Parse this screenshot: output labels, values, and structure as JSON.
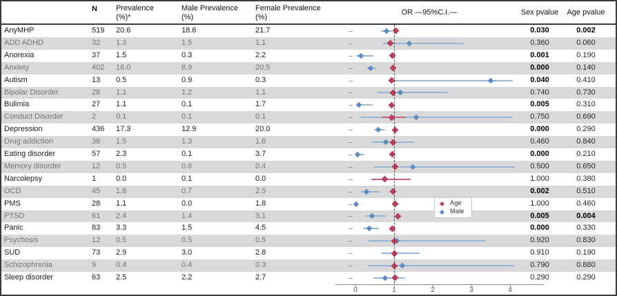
{
  "header": {
    "n": "N",
    "prevalence": "Prevalence\n(%)*",
    "male_prevalence": "Male Prevalence\n(%)",
    "female_prevalence": "Female Prevalence\n(%)",
    "or_ci": "OR —95%C.I.—",
    "sex_pvalue": "Sex pvalue",
    "age_pvalue": "Age pvalue"
  },
  "legend": {
    "items": [
      {
        "label": "Age",
        "color": "#b8415a"
      },
      {
        "label": "Male",
        "color": "#5d8cc0"
      }
    ]
  },
  "colors": {
    "age_marker": "#b8415a",
    "age_line": "#c4607a",
    "male_marker": "#5d8cc0",
    "male_line": "#96b6d8",
    "shaded_row": "#d9d9d9",
    "ref_line": "#4a4a4a"
  },
  "table": {
    "rows": [
      {
        "name": "AnyMHP",
        "n": "519",
        "prev": "20.6",
        "male_prev": "18.6",
        "female_prev": "21.7",
        "sex_p": "0.030",
        "sex_bold": true,
        "age_p": "0.002",
        "age_bold": true,
        "shaded": false
      },
      {
        "name": "ADD ADHD",
        "n": "32",
        "prev": "1.3",
        "male_prev": "1.5",
        "female_prev": "1.1",
        "sex_p": "0.360",
        "sex_bold": false,
        "age_p": "0.060",
        "age_bold": false,
        "shaded": true
      },
      {
        "name": "Anorexia",
        "n": "37",
        "prev": "1.5",
        "male_prev": "0.3",
        "female_prev": "2.2",
        "sex_p": "0.001",
        "sex_bold": true,
        "age_p": "0.190",
        "age_bold": false,
        "shaded": false
      },
      {
        "name": "Anxiety",
        "n": "402",
        "prev": "16.0",
        "male_prev": "8.9",
        "female_prev": "20.5",
        "sex_p": "0.000",
        "sex_bold": true,
        "age_p": "0.140",
        "age_bold": false,
        "shaded": true
      },
      {
        "name": "Autism",
        "n": "13",
        "prev": "0.5",
        "male_prev": "0.9",
        "female_prev": "0.3",
        "sex_p": "0.040",
        "sex_bold": true,
        "age_p": "0.410",
        "age_bold": false,
        "shaded": false
      },
      {
        "name": "Bipolar Disorder",
        "n": "28",
        "prev": "1.1",
        "male_prev": "1.2",
        "female_prev": "1.1",
        "sex_p": "0.740",
        "sex_bold": false,
        "age_p": "0.730",
        "age_bold": false,
        "shaded": true
      },
      {
        "name": "Bulimia",
        "n": "27",
        "prev": "1.1",
        "male_prev": "0.1",
        "female_prev": "1.7",
        "sex_p": "0.005",
        "sex_bold": true,
        "age_p": "0.310",
        "age_bold": false,
        "shaded": false
      },
      {
        "name": "Conduct Disorder",
        "n": "2",
        "prev": "0.1",
        "male_prev": "0.1",
        "female_prev": "0.1",
        "sex_p": "0.750",
        "sex_bold": false,
        "age_p": "0.690",
        "age_bold": false,
        "shaded": true
      },
      {
        "name": "Depression",
        "n": "436",
        "prev": "17.3",
        "male_prev": "12.9",
        "female_prev": "20.0",
        "sex_p": "0.000",
        "sex_bold": true,
        "age_p": "0.290",
        "age_bold": false,
        "shaded": false
      },
      {
        "name": "Drug addiction",
        "n": "38",
        "prev": "1.5",
        "male_prev": "1.3",
        "female_prev": "1.6",
        "sex_p": "0.460",
        "sex_bold": false,
        "age_p": "0.840",
        "age_bold": false,
        "shaded": true
      },
      {
        "name": "Eating disorder",
        "n": "57",
        "prev": "2.3",
        "male_prev": "0.1",
        "female_prev": "3.7",
        "sex_p": "0.000",
        "sex_bold": true,
        "age_p": "0.210",
        "age_bold": false,
        "shaded": false
      },
      {
        "name": "Memory disorder",
        "n": "12",
        "prev": "0.5",
        "male_prev": "0.6",
        "female_prev": "0.4",
        "sex_p": "0.500",
        "sex_bold": false,
        "age_p": "0.650",
        "age_bold": false,
        "shaded": true
      },
      {
        "name": "Narcolepsy",
        "n": "1",
        "prev": "0.0",
        "male_prev": "0.1",
        "female_prev": "0.0",
        "sex_p": "1.000",
        "sex_bold": false,
        "age_p": "0.380",
        "age_bold": false,
        "shaded": false
      },
      {
        "name": "OCD",
        "n": "45",
        "prev": "1.8",
        "male_prev": "0.7",
        "female_prev": "2.5",
        "sex_p": "0.002",
        "sex_bold": true,
        "age_p": "0.510",
        "age_bold": false,
        "shaded": true
      },
      {
        "name": "PMS",
        "n": "28",
        "prev": "1.1",
        "male_prev": "0.0",
        "female_prev": "1.8",
        "sex_p": "1.000",
        "sex_bold": false,
        "age_p": "0.460",
        "age_bold": false,
        "shaded": false
      },
      {
        "name": "PTSD",
        "n": "61",
        "prev": "2.4",
        "male_prev": "1.4",
        "female_prev": "3.1",
        "sex_p": "0.005",
        "sex_bold": true,
        "age_p": "0.004",
        "age_bold": true,
        "shaded": true
      },
      {
        "name": "Panic",
        "n": "83",
        "prev": "3.3",
        "male_prev": "1.5",
        "female_prev": "4.5",
        "sex_p": "0.000",
        "sex_bold": true,
        "age_p": "0.330",
        "age_bold": false,
        "shaded": false
      },
      {
        "name": "Psychosis",
        "n": "12",
        "prev": "0.5",
        "male_prev": "0.5",
        "female_prev": "0.5",
        "sex_p": "0.920",
        "sex_bold": false,
        "age_p": "0.830",
        "age_bold": false,
        "shaded": true
      },
      {
        "name": "SUD",
        "n": "73",
        "prev": "2.9",
        "male_prev": "3.0",
        "female_prev": "2.8",
        "sex_p": "0.910",
        "sex_bold": false,
        "age_p": "0.190",
        "age_bold": false,
        "shaded": false
      },
      {
        "name": "Schizophrenia",
        "n": "9",
        "prev": "0.4",
        "male_prev": "0.4",
        "female_prev": "0.3",
        "sex_p": "0.790",
        "sex_bold": false,
        "age_p": "0.880",
        "age_bold": false,
        "shaded": true
      },
      {
        "name": "Sleep disorder",
        "n": "63",
        "prev": "2.5",
        "male_prev": "2.2",
        "female_prev": "2.7",
        "sex_p": "0.290",
        "sex_bold": false,
        "age_p": "0.290",
        "age_bold": false,
        "shaded": false
      }
    ]
  },
  "chart_data": {
    "type": "scatter",
    "subtype": "forest-plot",
    "title": "OR —95%C.I.—",
    "xlabel": "OR",
    "x_ticks": [
      0,
      1,
      2,
      3,
      4
    ],
    "xlim": [
      -0.5,
      4.8
    ],
    "ref_line": 1,
    "grid": false,
    "legend_position": "inside-middle-right",
    "categories": [
      "AnyMHP",
      "ADD ADHD",
      "Anorexia",
      "Anxiety",
      "Autism",
      "Bipolar Disorder",
      "Bulimia",
      "Conduct Disorder",
      "Depression",
      "Drug addiction",
      "Eating disorder",
      "Memory disorder",
      "Narcolepsy",
      "OCD",
      "PMS",
      "PTSD",
      "Panic",
      "Psychosis",
      "SUD",
      "Schizophrenia",
      "Sleep disorder"
    ],
    "series": [
      {
        "name": "Age",
        "color": "#b8415a",
        "or": [
          1.05,
          0.91,
          0.95,
          0.98,
          0.94,
          0.97,
          0.93,
          0.93,
          1.02,
          0.98,
          0.95,
          1.03,
          0.76,
          0.97,
          1.03,
          1.1,
          0.95,
          1.0,
          1.0,
          1.0,
          1.03
        ],
        "ci_lo": [
          1.01,
          0.83,
          0.89,
          0.96,
          0.85,
          0.9,
          0.87,
          0.68,
          1.0,
          0.93,
          0.9,
          0.97,
          0.41,
          0.92,
          0.95,
          1.03,
          0.91,
          0.93,
          0.96,
          0.92,
          0.98
        ],
        "ci_hi": [
          1.09,
          0.99,
          1.01,
          1.01,
          1.04,
          1.04,
          0.99,
          1.3,
          1.05,
          1.04,
          1.0,
          1.1,
          1.43,
          1.02,
          1.12,
          1.17,
          0.99,
          1.07,
          1.04,
          1.08,
          1.08
        ]
      },
      {
        "name": "Male",
        "color": "#5d8cc0",
        "or": [
          0.8,
          1.4,
          0.15,
          0.4,
          3.5,
          1.16,
          0.09,
          1.57,
          0.59,
          0.79,
          0.06,
          1.49,
          null,
          0.28,
          0.02,
          0.43,
          0.36,
          1.07,
          1.02,
          1.21,
          0.77
        ],
        "ci_lo": [
          0.66,
          0.71,
          0.02,
          0.3,
          0.86,
          0.57,
          0.01,
          0.12,
          0.48,
          0.41,
          0.01,
          0.49,
          null,
          0.14,
          0.0,
          0.25,
          0.2,
          0.34,
          0.66,
          0.32,
          0.46
        ],
        "ci_hi": [
          0.95,
          2.8,
          0.47,
          0.54,
          4.07,
          2.4,
          0.45,
          4.07,
          0.77,
          1.52,
          0.23,
          4.12,
          null,
          0.63,
          0.06,
          0.79,
          0.6,
          3.37,
          1.66,
          4.1,
          1.28
        ]
      }
    ]
  }
}
